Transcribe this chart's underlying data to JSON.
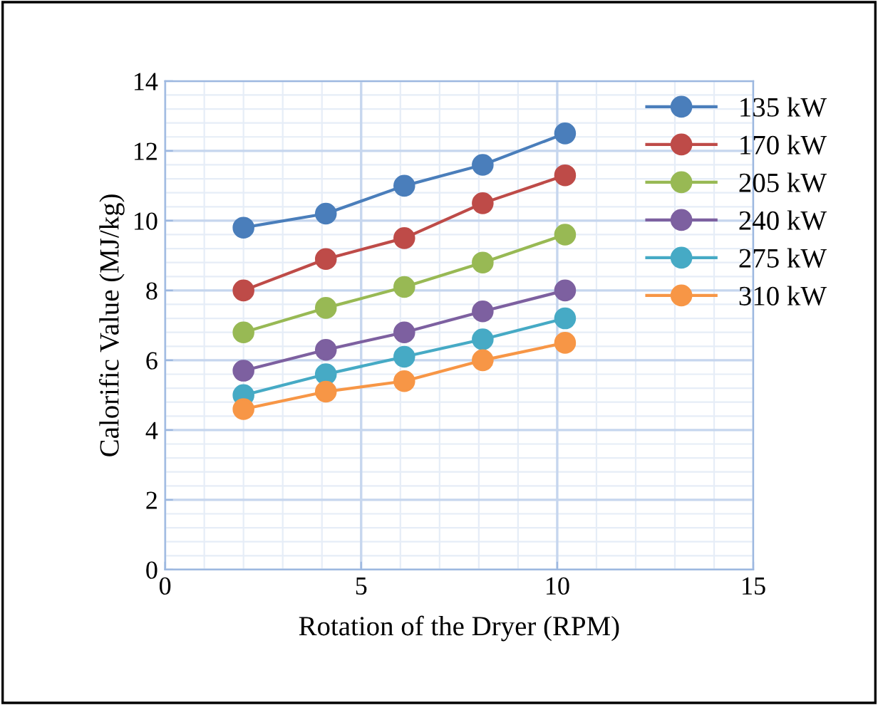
{
  "chart_data": {
    "type": "line",
    "xlabel": "Rotation of the Dryer (RPM)",
    "ylabel": "Calorific Value (MJ/kg)",
    "x": [
      2.0,
      4.1,
      6.1,
      8.1,
      10.2
    ],
    "xlim": [
      0,
      15
    ],
    "xticks": [
      0,
      5,
      10,
      15
    ],
    "ylim": [
      0,
      14
    ],
    "yticks": [
      0,
      2,
      4,
      6,
      8,
      10,
      12,
      14
    ],
    "grid": true,
    "legend": "top right",
    "marker": "circle",
    "line_style": "solid",
    "series": [
      {
        "name": "135 kW",
        "color": "#4a7ebb",
        "values": [
          9.8,
          10.2,
          11.0,
          11.6,
          12.5
        ]
      },
      {
        "name": "170 kW",
        "color": "#be4b48",
        "values": [
          8.0,
          8.9,
          9.5,
          10.5,
          11.3
        ]
      },
      {
        "name": "205 kW",
        "color": "#98b954",
        "values": [
          6.8,
          7.5,
          8.1,
          8.8,
          9.6
        ]
      },
      {
        "name": "240 kW",
        "color": "#7d60a0",
        "values": [
          5.7,
          6.3,
          6.8,
          7.4,
          8.0
        ]
      },
      {
        "name": "275 kW",
        "color": "#46aac5",
        "values": [
          5.0,
          5.6,
          6.1,
          6.6,
          7.2
        ]
      },
      {
        "name": "310 kW",
        "color": "#f79646",
        "values": [
          4.6,
          5.1,
          5.4,
          6.0,
          6.5
        ]
      }
    ]
  }
}
